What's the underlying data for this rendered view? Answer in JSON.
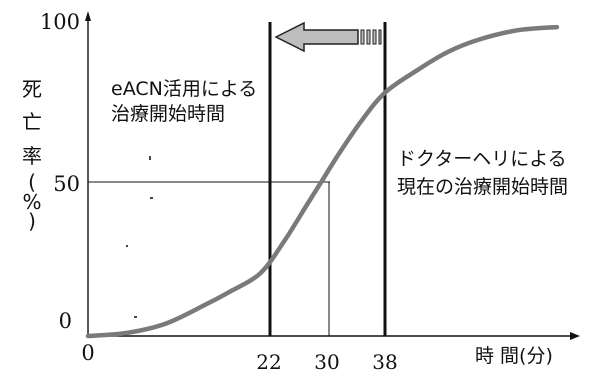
{
  "chart_data": {
    "type": "line",
    "ylabel": "死亡率(%)",
    "xlabel": "時 間(分)",
    "x_ticks": [
      "0",
      "22",
      "30",
      "38"
    ],
    "y_ticks": [
      "0",
      "50",
      "100"
    ],
    "series": [
      {
        "x": [
          0,
          5,
          10,
          15,
          18,
          22,
          25,
          28,
          30,
          32,
          35,
          38,
          42,
          46,
          50,
          55,
          60
        ],
        "y": [
          0,
          1,
          4,
          10,
          14,
          20,
          30,
          42,
          50,
          58,
          69,
          78,
          85,
          91,
          95,
          98,
          99
        ]
      }
    ],
    "markers": [
      {
        "x": 22,
        "label": "eACN活用による\n治療開始時間"
      },
      {
        "x": 30
      },
      {
        "x": 38,
        "label": "ドクターヘリによる\n現在の治療開始時間"
      }
    ],
    "reference": {
      "y": 50,
      "x": 30
    },
    "arrow": {
      "from": 38,
      "to": 22
    },
    "xlim": [
      0,
      60
    ],
    "ylim": [
      0,
      100
    ],
    "grid": false,
    "colors": {
      "curve": "#7a7a7a",
      "lines": "#111111",
      "arrow_fill": "#bdbdbd"
    }
  }
}
